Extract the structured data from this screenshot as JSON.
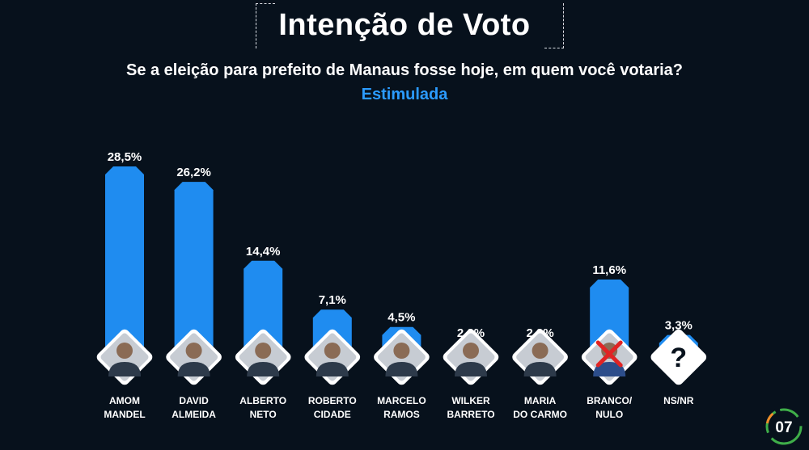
{
  "header": {
    "title": "Intenção de Voto",
    "subtitle": "Se a eleição para prefeito de Manaus fosse hoje, em quem você votaria?",
    "tag": "Estimulada"
  },
  "page_number": "07",
  "colors": {
    "background": "#07111c",
    "bar": "#1f8cf0",
    "accent": "#2b9bff",
    "text": "#ffffff"
  },
  "chart_data": {
    "type": "bar",
    "categories": [
      [
        "AMOM",
        "MANDEL"
      ],
      [
        "DAVID",
        "ALMEIDA"
      ],
      [
        "ALBERTO",
        "NETO"
      ],
      [
        "ROBERTO",
        "CIDADE"
      ],
      [
        "MARCELO",
        "RAMOS"
      ],
      [
        "WILKER",
        "BARRETO"
      ],
      [
        "MARIA",
        "DO CARMO"
      ],
      [
        "BRANCO/",
        "NULO"
      ],
      [
        "NS/NR"
      ]
    ],
    "values": [
      28.5,
      26.2,
      14.4,
      7.1,
      4.5,
      2.2,
      2.2,
      11.6,
      3.3
    ],
    "labels": [
      "28,5%",
      "26,2%",
      "14,4%",
      "7,1%",
      "4,5%",
      "2,2%",
      "2,2%",
      "11,6%",
      "3,3%"
    ],
    "icons": [
      "candidate-photo",
      "candidate-photo",
      "candidate-photo",
      "candidate-photo",
      "candidate-photo",
      "candidate-photo",
      "candidate-photo",
      "crossed-out-person-icon",
      "question-mark-icon"
    ],
    "title": "Intenção de Voto",
    "xlabel": "",
    "ylabel": "",
    "grid": false,
    "legend": "none"
  }
}
